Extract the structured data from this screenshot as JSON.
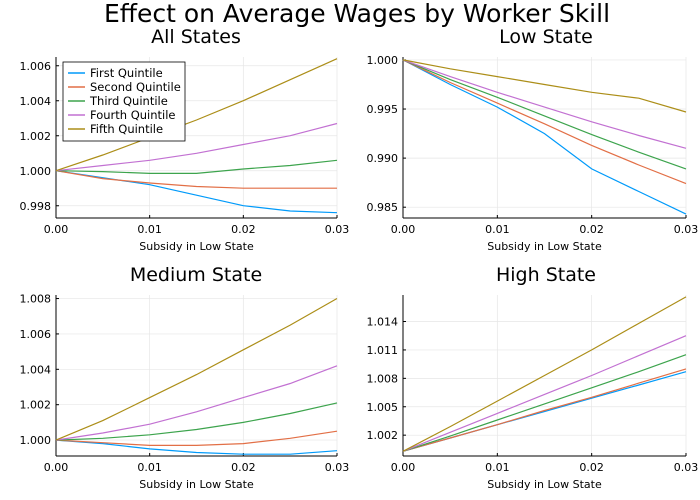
{
  "figure_title": "Effect on Average Wages by Worker Skill",
  "colors": {
    "First Quintile": "#009AFA",
    "Second Quintile": "#E26F46",
    "Third Quintile": "#3DA44D",
    "Fourth Quintile": "#C271D2",
    "Fifth Quintile": "#AC8E18"
  },
  "chart_data": [
    {
      "type": "line",
      "title": "All States",
      "xlabel": "Subsidy in Low State",
      "ylabel": "",
      "xlim": [
        0,
        0.03
      ],
      "ylim": [
        0.9973,
        1.0065
      ],
      "xticks": [
        0.0,
        0.01,
        0.02,
        0.03
      ],
      "xtick_labels": [
        "0.00",
        "0.01",
        "0.02",
        "0.03"
      ],
      "yticks": [
        0.998,
        1.0,
        1.002,
        1.004,
        1.006
      ],
      "ytick_labels": [
        "0.998",
        "1.000",
        "1.002",
        "1.004",
        "1.006"
      ],
      "grid": true,
      "legend": "top-left",
      "x": [
        0,
        0.005,
        0.01,
        0.015,
        0.02,
        0.025,
        0.03
      ],
      "series": [
        {
          "name": "First Quintile",
          "values": [
            1.0,
            0.9996,
            0.9992,
            0.9986,
            0.998,
            0.9977,
            0.9976
          ]
        },
        {
          "name": "Second Quintile",
          "values": [
            1.0,
            0.99955,
            0.9993,
            0.9991,
            0.999,
            0.999,
            0.999
          ]
        },
        {
          "name": "Third Quintile",
          "values": [
            1.0,
            0.99995,
            0.99985,
            0.99985,
            1.0001,
            1.0003,
            1.0006
          ]
        },
        {
          "name": "Fourth Quintile",
          "values": [
            1.0,
            1.0003,
            1.0006,
            1.001,
            1.0015,
            1.002,
            1.0027
          ]
        },
        {
          "name": "Fifth Quintile",
          "values": [
            1.0,
            1.0009,
            1.0019,
            1.0029,
            1.004,
            1.0052,
            1.0064
          ]
        }
      ]
    },
    {
      "type": "line",
      "title": "Low State",
      "xlabel": "Subsidy in Low State",
      "ylabel": "",
      "xlim": [
        0,
        0.03
      ],
      "ylim": [
        0.9839,
        1.0003
      ],
      "xticks": [
        0.0,
        0.01,
        0.02,
        0.03
      ],
      "xtick_labels": [
        "0.00",
        "0.01",
        "0.02",
        "0.03"
      ],
      "yticks": [
        0.985,
        0.99,
        0.995,
        1.0
      ],
      "ytick_labels": [
        "0.985",
        "0.990",
        "0.995",
        "1.000"
      ],
      "grid": true,
      "x": [
        0,
        0.005,
        0.01,
        0.015,
        0.02,
        0.025,
        0.03
      ],
      "series": [
        {
          "name": "First Quintile",
          "values": [
            1.0,
            0.9975,
            0.9952,
            0.9925,
            0.9889,
            0.9866,
            0.9843
          ]
        },
        {
          "name": "Second Quintile",
          "values": [
            1.0,
            0.9977,
            0.9956,
            0.9935,
            0.9913,
            0.9893,
            0.9874
          ]
        },
        {
          "name": "Third Quintile",
          "values": [
            1.0,
            0.998,
            0.9962,
            0.9943,
            0.9924,
            0.9906,
            0.9889
          ]
        },
        {
          "name": "Fourth Quintile",
          "values": [
            1.0,
            0.9983,
            0.9967,
            0.9952,
            0.9937,
            0.9923,
            0.991
          ]
        },
        {
          "name": "Fifth Quintile",
          "values": [
            1.0,
            0.9991,
            0.9983,
            0.9975,
            0.9967,
            0.9961,
            0.9947
          ]
        }
      ]
    },
    {
      "type": "line",
      "title": "Medium State",
      "xlabel": "Subsidy in Low State",
      "ylabel": "",
      "xlim": [
        0,
        0.03
      ],
      "ylim": [
        0.9991,
        1.0082
      ],
      "xticks": [
        0.0,
        0.01,
        0.02,
        0.03
      ],
      "xtick_labels": [
        "0.00",
        "0.01",
        "0.02",
        "0.03"
      ],
      "yticks": [
        1.0,
        1.002,
        1.004,
        1.006,
        1.008
      ],
      "ytick_labels": [
        "1.000",
        "1.002",
        "1.004",
        "1.006",
        "1.008"
      ],
      "grid": true,
      "x": [
        0,
        0.005,
        0.01,
        0.015,
        0.02,
        0.025,
        0.03
      ],
      "series": [
        {
          "name": "First Quintile",
          "values": [
            1.0,
            0.9998,
            0.9995,
            0.9993,
            0.9992,
            0.9992,
            0.9994
          ]
        },
        {
          "name": "Second Quintile",
          "values": [
            1.0,
            0.99985,
            0.9997,
            0.9997,
            0.9998,
            1.0001,
            1.0005
          ]
        },
        {
          "name": "Third Quintile",
          "values": [
            1.0,
            1.0001,
            1.0003,
            1.0006,
            1.001,
            1.0015,
            1.0021
          ]
        },
        {
          "name": "Fourth Quintile",
          "values": [
            1.0,
            1.0004,
            1.0009,
            1.0016,
            1.0024,
            1.0032,
            1.0042
          ]
        },
        {
          "name": "Fifth Quintile",
          "values": [
            1.0,
            1.0011,
            1.0024,
            1.0037,
            1.0051,
            1.0065,
            1.008
          ]
        }
      ]
    },
    {
      "type": "line",
      "title": "High State",
      "xlabel": "Subsidy in Low State",
      "ylabel": "",
      "xlim": [
        0,
        0.03
      ],
      "ylim": [
        0.9998,
        1.0168
      ],
      "xticks": [
        0.0,
        0.01,
        0.02,
        0.03
      ],
      "xtick_labels": [
        "0.00",
        "0.01",
        "0.02",
        "0.03"
      ],
      "yticks": [
        1.002,
        1.005,
        1.008,
        1.011,
        1.014
      ],
      "ytick_labels": [
        "1.002",
        "1.005",
        "1.008",
        "1.011",
        "1.014"
      ],
      "grid": true,
      "x": [
        0,
        0.005,
        0.01,
        0.015,
        0.02,
        0.025,
        0.03
      ],
      "series": [
        {
          "name": "First Quintile",
          "values": [
            1.0003,
            1.0017,
            1.0031,
            1.0045,
            1.0059,
            1.0073,
            1.0087
          ]
        },
        {
          "name": "Second Quintile",
          "values": [
            1.0003,
            1.0017,
            1.0031,
            1.0046,
            1.006,
            1.0075,
            1.009
          ]
        },
        {
          "name": "Third Quintile",
          "values": [
            1.0003,
            1.0019,
            1.0036,
            1.0053,
            1.007,
            1.0087,
            1.0105
          ]
        },
        {
          "name": "Fourth Quintile",
          "values": [
            1.0003,
            1.0023,
            1.0043,
            1.0063,
            1.0083,
            1.0104,
            1.0125
          ]
        },
        {
          "name": "Fifth Quintile",
          "values": [
            1.0003,
            1.0029,
            1.0056,
            1.0083,
            1.011,
            1.0138,
            1.0166
          ]
        }
      ]
    }
  ]
}
